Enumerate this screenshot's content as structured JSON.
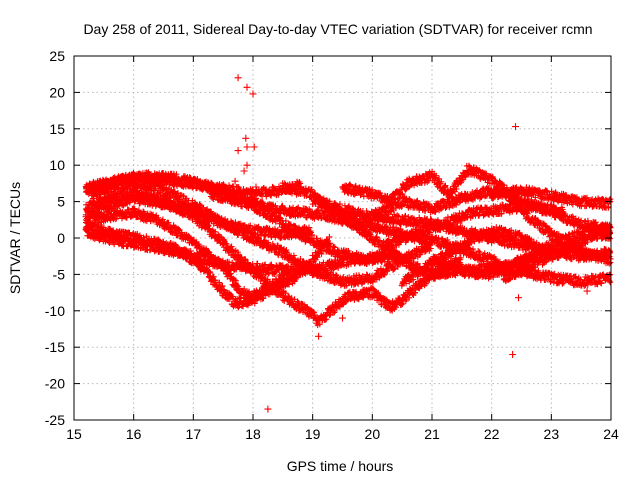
{
  "chart_data": {
    "type": "scatter",
    "title": "Day 258 of 2011, Sidereal Day-to-day VTEC variation (SDTVAR) for receiver rcmn",
    "xlabel": "GPS time / hours",
    "ylabel": "SDTVAR / TECUs",
    "xlim": [
      15,
      24
    ],
    "ylim": [
      -25,
      25
    ],
    "xticks": [
      15,
      16,
      17,
      18,
      19,
      20,
      21,
      22,
      23,
      24
    ],
    "yticks": [
      -25,
      -20,
      -15,
      -10,
      -5,
      0,
      5,
      10,
      15,
      20,
      25
    ],
    "grid": true,
    "marker": "+",
    "series_color": "#ff0000",
    "tracks": [
      {
        "name": "track-1",
        "points": [
          [
            15.2,
            6.5
          ],
          [
            15.6,
            7.5
          ],
          [
            16.0,
            8.3
          ],
          [
            16.5,
            8.0
          ],
          [
            17.0,
            7.4
          ],
          [
            17.5,
            6.8
          ],
          [
            18.0,
            6.0
          ],
          [
            18.4,
            6.5
          ],
          [
            18.8,
            7.2
          ]
        ]
      },
      {
        "name": "track-2",
        "points": [
          [
            15.2,
            6.8
          ],
          [
            15.7,
            7.8
          ],
          [
            16.2,
            8.4
          ],
          [
            16.7,
            8.2
          ],
          [
            17.3,
            7.0
          ],
          [
            17.9,
            5.0
          ],
          [
            18.4,
            2.5
          ],
          [
            18.9,
            0.0
          ],
          [
            19.4,
            -2.0
          ],
          [
            19.9,
            -3.0
          ],
          [
            20.4,
            -2.5
          ]
        ]
      },
      {
        "name": "track-3",
        "points": [
          [
            15.3,
            6.0
          ],
          [
            15.7,
            7.2
          ],
          [
            16.1,
            7.5
          ],
          [
            16.5,
            6.5
          ],
          [
            17.0,
            4.5
          ],
          [
            17.5,
            2.0
          ],
          [
            18.0,
            0.0
          ],
          [
            18.5,
            -2.0
          ],
          [
            19.0,
            -4.5
          ],
          [
            19.5,
            -6.0
          ],
          [
            20.0,
            -5.5
          ],
          [
            20.5,
            -3.0
          ],
          [
            21.0,
            -1.0
          ]
        ]
      },
      {
        "name": "track-4",
        "points": [
          [
            15.2,
            4.0
          ],
          [
            15.6,
            5.5
          ],
          [
            16.0,
            6.0
          ],
          [
            16.5,
            5.2
          ],
          [
            17.0,
            3.0
          ],
          [
            17.4,
            0.0
          ],
          [
            17.8,
            -3.0
          ],
          [
            18.2,
            -6.0
          ],
          [
            18.6,
            -8.5
          ],
          [
            19.0,
            -10.5
          ],
          [
            19.1,
            -11.5
          ],
          [
            19.3,
            -10.0
          ],
          [
            19.6,
            -8.0
          ],
          [
            20.0,
            -7.5
          ],
          [
            20.3,
            -9.5
          ],
          [
            20.5,
            -8.5
          ],
          [
            21.0,
            -5.0
          ],
          [
            21.5,
            -3.0
          ]
        ]
      },
      {
        "name": "track-5",
        "points": [
          [
            15.2,
            2.0
          ],
          [
            15.6,
            3.0
          ],
          [
            16.0,
            3.5
          ],
          [
            16.4,
            2.5
          ],
          [
            16.8,
            0.5
          ],
          [
            17.2,
            -2.0
          ],
          [
            17.5,
            -4.0
          ],
          [
            17.8,
            -7.5
          ],
          [
            18.0,
            -8.0
          ],
          [
            18.3,
            -6.5
          ],
          [
            18.6,
            -5.0
          ]
        ]
      },
      {
        "name": "track-6",
        "points": [
          [
            15.2,
            1.5
          ],
          [
            15.7,
            0.5
          ],
          [
            16.2,
            -0.3
          ],
          [
            16.7,
            -1.5
          ],
          [
            17.1,
            -3.5
          ],
          [
            17.4,
            -6.5
          ],
          [
            17.7,
            -9.0
          ],
          [
            18.0,
            -8.5
          ],
          [
            18.3,
            -7.0
          ],
          [
            18.7,
            -5.5
          ],
          [
            19.0,
            -3.0
          ],
          [
            19.3,
            0.0
          ]
        ]
      },
      {
        "name": "track-7",
        "points": [
          [
            15.2,
            0.8
          ],
          [
            15.7,
            -0.3
          ],
          [
            16.2,
            -1.0
          ],
          [
            16.7,
            -1.8
          ],
          [
            17.2,
            -3.0
          ],
          [
            17.7,
            -4.0
          ],
          [
            18.2,
            -4.2
          ],
          [
            18.7,
            -4.5
          ],
          [
            19.2,
            -4.0
          ],
          [
            19.7,
            -3.0
          ],
          [
            20.2,
            -2.5
          ]
        ]
      },
      {
        "name": "track-8",
        "points": [
          [
            15.2,
            3.0
          ],
          [
            15.6,
            4.5
          ],
          [
            16.0,
            5.5
          ],
          [
            16.5,
            4.8
          ],
          [
            17.0,
            3.5
          ],
          [
            17.5,
            2.0
          ],
          [
            18.0,
            1.0
          ],
          [
            18.5,
            0.5
          ],
          [
            19.0,
            1.0
          ]
        ]
      },
      {
        "name": "track-9",
        "points": [
          [
            17.3,
            6.0
          ],
          [
            17.8,
            5.0
          ],
          [
            18.3,
            4.0
          ],
          [
            18.8,
            3.5
          ],
          [
            19.3,
            3.0
          ],
          [
            19.8,
            2.0
          ],
          [
            20.3,
            1.0
          ],
          [
            20.8,
            0.0
          ],
          [
            21.3,
            -1.0
          ],
          [
            21.8,
            -2.5
          ],
          [
            22.3,
            -4.0
          ],
          [
            22.6,
            -3.0
          ],
          [
            23.0,
            -1.5
          ]
        ]
      },
      {
        "name": "track-10",
        "points": [
          [
            18.5,
            7.0
          ],
          [
            19.0,
            6.0
          ],
          [
            19.5,
            3.0
          ],
          [
            20.0,
            0.0
          ],
          [
            20.5,
            -3.0
          ],
          [
            21.0,
            -5.0
          ],
          [
            21.5,
            -4.5
          ],
          [
            22.0,
            -4.0
          ],
          [
            22.5,
            -4.5
          ],
          [
            23.0,
            -5.5
          ],
          [
            23.5,
            -6.0
          ],
          [
            24.0,
            -5.5
          ]
        ]
      },
      {
        "name": "track-11",
        "points": [
          [
            19.0,
            5.0
          ],
          [
            19.5,
            4.0
          ],
          [
            20.0,
            3.0
          ],
          [
            20.5,
            2.5
          ],
          [
            21.0,
            2.0
          ],
          [
            21.5,
            1.0
          ],
          [
            22.0,
            0.0
          ],
          [
            22.5,
            -1.0
          ],
          [
            23.0,
            -2.0
          ],
          [
            23.5,
            -2.5
          ],
          [
            24.0,
            -2.0
          ]
        ]
      },
      {
        "name": "track-12",
        "points": [
          [
            19.5,
            7.0
          ],
          [
            20.0,
            6.0
          ],
          [
            20.3,
            5.0
          ],
          [
            20.6,
            7.5
          ],
          [
            21.0,
            8.5
          ],
          [
            21.3,
            6.0
          ],
          [
            21.6,
            9.5
          ],
          [
            22.0,
            8.0
          ],
          [
            22.3,
            6.0
          ],
          [
            22.6,
            3.0
          ],
          [
            23.0,
            0.5
          ],
          [
            23.5,
            -2.0
          ],
          [
            24.0,
            -3.0
          ]
        ]
      },
      {
        "name": "track-13",
        "points": [
          [
            20.0,
            3.0
          ],
          [
            20.5,
            5.0
          ],
          [
            21.0,
            4.0
          ],
          [
            21.5,
            5.5
          ],
          [
            22.0,
            6.5
          ],
          [
            22.5,
            5.0
          ],
          [
            23.0,
            3.5
          ],
          [
            23.5,
            2.0
          ],
          [
            24.0,
            1.0
          ]
        ]
      },
      {
        "name": "track-14",
        "points": [
          [
            21.0,
            -3.0
          ],
          [
            21.5,
            -4.5
          ],
          [
            22.0,
            -5.0
          ],
          [
            22.5,
            -3.0
          ],
          [
            23.0,
            -1.0
          ],
          [
            23.5,
            0.5
          ],
          [
            24.0,
            1.5
          ]
        ]
      },
      {
        "name": "track-15",
        "points": [
          [
            22.0,
            6.0
          ],
          [
            22.5,
            6.5
          ],
          [
            23.0,
            5.8
          ],
          [
            23.5,
            5.0
          ],
          [
            24.0,
            4.7
          ]
        ]
      },
      {
        "name": "track-16",
        "points": [
          [
            22.2,
            -5.5
          ],
          [
            22.6,
            -4.0
          ],
          [
            23.0,
            -2.5
          ],
          [
            23.4,
            -1.0
          ],
          [
            23.8,
            0.5
          ],
          [
            24.0,
            0.5
          ]
        ]
      },
      {
        "name": "track-17",
        "points": [
          [
            20.2,
            -1.0
          ],
          [
            20.7,
            0.5
          ],
          [
            21.2,
            2.0
          ],
          [
            21.7,
            3.5
          ],
          [
            22.2,
            4.0
          ],
          [
            22.7,
            4.5
          ],
          [
            23.2,
            3.5
          ]
        ]
      },
      {
        "name": "track-18",
        "points": [
          [
            20.5,
            -6.0
          ],
          [
            20.9,
            -4.0
          ],
          [
            21.3,
            -2.0
          ],
          [
            21.7,
            0.0
          ],
          [
            22.1,
            1.0
          ],
          [
            22.5,
            0.0
          ],
          [
            22.9,
            -2.0
          ]
        ]
      }
    ],
    "outliers": [
      [
        17.75,
        22.0
      ],
      [
        17.9,
        20.7
      ],
      [
        18.0,
        19.8
      ],
      [
        17.75,
        12.0
      ],
      [
        17.88,
        13.7
      ],
      [
        17.9,
        12.5
      ],
      [
        18.02,
        12.5
      ],
      [
        17.9,
        10.0
      ],
      [
        17.85,
        9.2
      ],
      [
        17.7,
        7.8
      ],
      [
        18.05,
        7.0
      ],
      [
        18.25,
        -23.5
      ],
      [
        19.1,
        -13.5
      ],
      [
        22.4,
        15.3
      ],
      [
        22.35,
        -16.0
      ],
      [
        22.45,
        -8.2
      ],
      [
        23.6,
        -7.3
      ],
      [
        18.4,
        -4.0
      ],
      [
        19.5,
        -11.0
      ]
    ]
  }
}
